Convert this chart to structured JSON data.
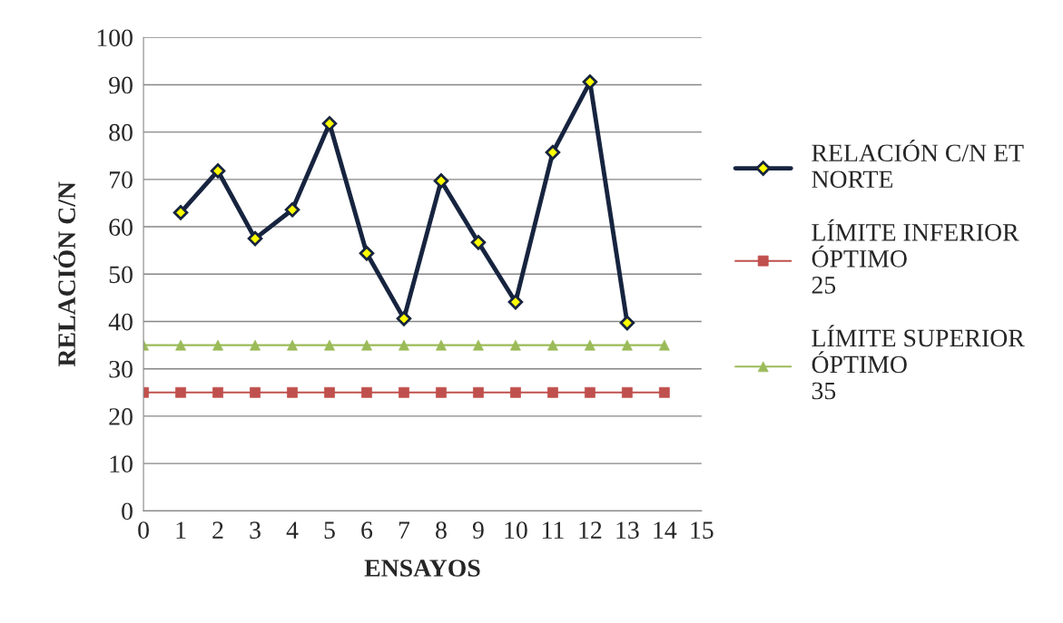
{
  "chart_data": {
    "type": "line",
    "xlabel": "ENSAYOS",
    "ylabel": "RELACIÓN C/N",
    "xlim": [
      0,
      15
    ],
    "xticks": [
      0,
      1,
      2,
      3,
      4,
      5,
      6,
      7,
      8,
      9,
      10,
      11,
      12,
      13,
      14,
      15
    ],
    "ylim": [
      0,
      100
    ],
    "yticks": [
      0,
      10,
      20,
      30,
      40,
      50,
      60,
      70,
      80,
      90,
      100
    ],
    "grid": "y",
    "legend": "right",
    "series": [
      {
        "name": "RELACIÓN C/N ET\nNORTE",
        "color": "#17243f",
        "marker": "diamond",
        "x": [
          1,
          2,
          3,
          4,
          5,
          6,
          7,
          8,
          9,
          10,
          11,
          12,
          13
        ],
        "values": [
          63.0,
          71.8,
          57.5,
          63.6,
          81.8,
          54.4,
          40.6,
          69.7,
          56.7,
          44.1,
          75.7,
          90.6,
          39.7
        ]
      },
      {
        "name": "LÍMITE INFERIOR\nÓPTIMO\n25",
        "color": "#c0504d",
        "marker": "square",
        "x": [
          0,
          1,
          2,
          3,
          4,
          5,
          6,
          7,
          8,
          9,
          10,
          11,
          12,
          13,
          14
        ],
        "values": [
          25,
          25,
          25,
          25,
          25,
          25,
          25,
          25,
          25,
          25,
          25,
          25,
          25,
          25,
          25
        ]
      },
      {
        "name": "LÍMITE SUPERIOR\nÓPTIMO\n35",
        "color": "#9bbb59",
        "marker": "triangle",
        "x": [
          0,
          1,
          2,
          3,
          4,
          5,
          6,
          7,
          8,
          9,
          10,
          11,
          12,
          13,
          14
        ],
        "values": [
          35,
          35,
          35,
          35,
          35,
          35,
          35,
          35,
          35,
          35,
          35,
          35,
          35,
          35,
          35
        ]
      }
    ]
  }
}
